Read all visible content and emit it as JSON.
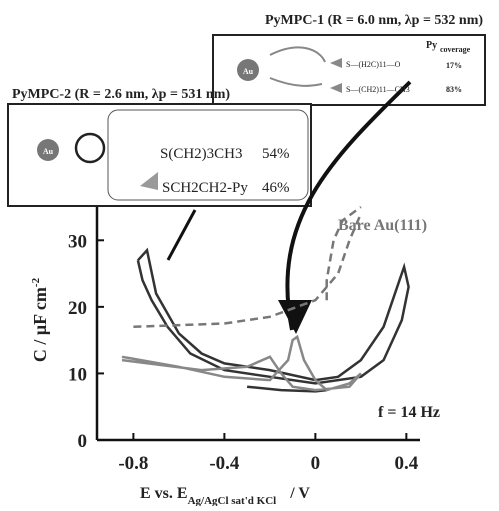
{
  "chart_data": {
    "type": "line",
    "annotations": {
      "pympc1": "PyMPC-1 (R = 6.0 nm, λp = 532 nm)",
      "pympc2": "PyMPC-2 (R = 2.6 nm, λp = 531 nm)",
      "bare": "Bare Au(111)",
      "freq": "f = 14 Hz",
      "au1": "Au",
      "au2": "Au",
      "py": "Py",
      "coverage": "coverage",
      "c17": "17%",
      "c83": "83%",
      "s1": "S—(H2C)11—O",
      "s2": "S—(CH2)11—CH3",
      "sa": "S(CH2)3CH3",
      "sb": "SCH2CH2-Py",
      "p54": "54%",
      "p46": "46%"
    },
    "ylabel": "C / μF cm",
    "ylabel_sup": "-2",
    "xlabel_main": "E  vs.  E",
    "xlabel_sub": "Ag/AgCl sat'd KCl",
    "xlabel_end": "/  V",
    "xlim": [
      -0.96,
      0.46
    ],
    "ylim": [
      0,
      35
    ],
    "xticks": [
      -0.8,
      -0.4,
      0,
      0.4
    ],
    "yticks": [
      0,
      10,
      20,
      30
    ],
    "series": [
      {
        "color": "#333333",
        "dash": false,
        "x": [
          -0.78,
          -0.74,
          -0.7,
          -0.6,
          -0.5,
          -0.4,
          -0.2,
          0,
          0.1,
          0.2,
          0.3,
          0.37,
          0.39,
          0.41,
          0.38,
          0.3,
          0.2,
          0,
          -0.2,
          -0.4,
          -0.55,
          -0.65,
          -0.72,
          -0.76,
          -0.78
        ],
        "values": [
          27,
          28.5,
          22,
          16,
          13,
          11.5,
          10.5,
          9,
          9.5,
          12,
          17,
          24,
          26,
          23,
          18,
          12,
          9.5,
          8.5,
          9.5,
          10.5,
          13,
          17,
          21,
          24,
          27
        ]
      },
      {
        "color": "#333333",
        "dash": false,
        "x": [
          -0.3,
          -0.15,
          0,
          0.05
        ],
        "values": [
          8,
          7.5,
          7.3,
          7.5
        ]
      },
      {
        "color": "#888888",
        "dash": false,
        "x": [
          -0.85,
          -0.6,
          -0.4,
          -0.2,
          -0.12,
          -0.1,
          -0.08,
          -0.05,
          0,
          0.05,
          0.15,
          0.2,
          0.15,
          0,
          -0.1,
          -0.15,
          -0.2,
          -0.3,
          -0.5,
          -0.85
        ],
        "values": [
          12.5,
          11,
          9.5,
          9,
          12,
          15,
          15.5,
          12,
          9,
          7.5,
          8.5,
          10,
          8,
          7.5,
          8,
          10,
          12.5,
          11,
          10.5,
          12
        ]
      },
      {
        "color": "#777777",
        "dash": true,
        "x": [
          -0.8,
          -0.4,
          -0.2,
          0,
          0.1,
          0.15,
          0.2
        ],
        "values": [
          17,
          17.5,
          18.5,
          21,
          25,
          30,
          34
        ]
      },
      {
        "color": "#777777",
        "dash": true,
        "x": [
          0.05,
          0.05,
          0.08,
          0.12,
          0.2
        ],
        "values": [
          21,
          24,
          30,
          33,
          35
        ]
      }
    ]
  }
}
